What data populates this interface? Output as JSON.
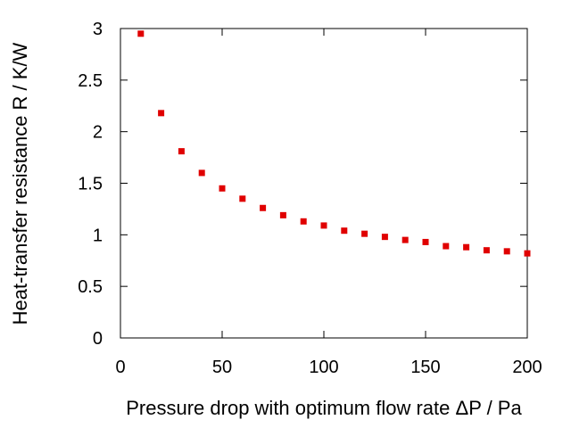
{
  "chart_data": {
    "type": "scatter",
    "title": "",
    "xlabel": "Pressure drop with optimum flow rate ΔP / Pa",
    "ylabel": "Heat-transfer resistance R / K/W",
    "xlim": [
      0,
      200
    ],
    "ylim": [
      0,
      3
    ],
    "xticks": [
      0,
      50,
      100,
      150,
      200
    ],
    "yticks": [
      0,
      0.5,
      1,
      1.5,
      2,
      2.5,
      3
    ],
    "xtick_labels": [
      "0",
      "50",
      "100",
      "150",
      "200"
    ],
    "ytick_labels": [
      "0",
      "0.5",
      "1",
      "1.5",
      "2",
      "2.5",
      "3"
    ],
    "grid": false,
    "marker_color": "#e00000",
    "series": [
      {
        "x": [
          10,
          20,
          30,
          40,
          50,
          60,
          70,
          80,
          90,
          100,
          110,
          120,
          130,
          140,
          150,
          160,
          170,
          180,
          190,
          200
        ],
        "y": [
          2.95,
          2.18,
          1.81,
          1.6,
          1.45,
          1.35,
          1.26,
          1.19,
          1.13,
          1.09,
          1.04,
          1.01,
          0.98,
          0.95,
          0.93,
          0.89,
          0.88,
          0.85,
          0.84,
          0.82
        ]
      }
    ]
  }
}
